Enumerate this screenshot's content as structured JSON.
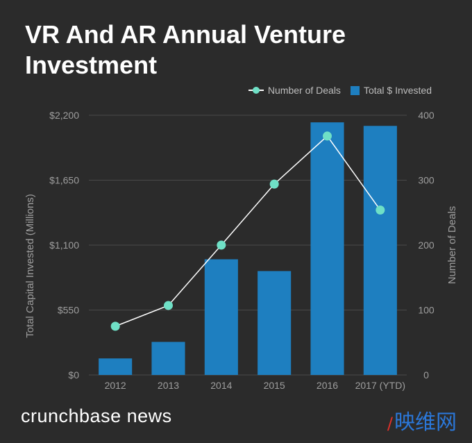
{
  "title": "VR And AR Annual Venture Investment",
  "footer": {
    "logo_text": "crunchbase news",
    "watermark_mark": "/",
    "watermark_text": "映维网"
  },
  "colors": {
    "bar": "#1e7fc0",
    "line": "#ffffff",
    "marker": "#6fe0c6",
    "grid": "#4a4a4a",
    "tick": "#9e9e9e"
  },
  "chart_data": {
    "type": "bar",
    "title": "VR And AR Annual Venture Investment",
    "categories": [
      "2012",
      "2013",
      "2014",
      "2015",
      "2016",
      "2017 (YTD)"
    ],
    "legend_position": "top-right",
    "grid": true,
    "series": [
      {
        "name": "Number of Deals",
        "type": "line",
        "axis": "right",
        "values": [
          75,
          107,
          200,
          294,
          368,
          254
        ]
      },
      {
        "name": "Total $ Invested",
        "type": "bar",
        "axis": "left",
        "values": [
          140,
          280,
          980,
          880,
          2140,
          2110
        ]
      }
    ],
    "y_left": {
      "label": "Total Capital Invested (Millions)",
      "range": [
        0,
        2200
      ],
      "ticks": [
        0,
        550,
        1100,
        1650,
        2200
      ],
      "tick_labels": [
        "$0",
        "$550",
        "$1,100",
        "$1,650",
        "$2,200"
      ]
    },
    "y_right": {
      "label": "Number of Deals",
      "range": [
        0,
        400
      ],
      "ticks": [
        0,
        100,
        200,
        300,
        400
      ],
      "tick_labels": [
        "0",
        "100",
        "200",
        "300",
        "400"
      ]
    }
  }
}
